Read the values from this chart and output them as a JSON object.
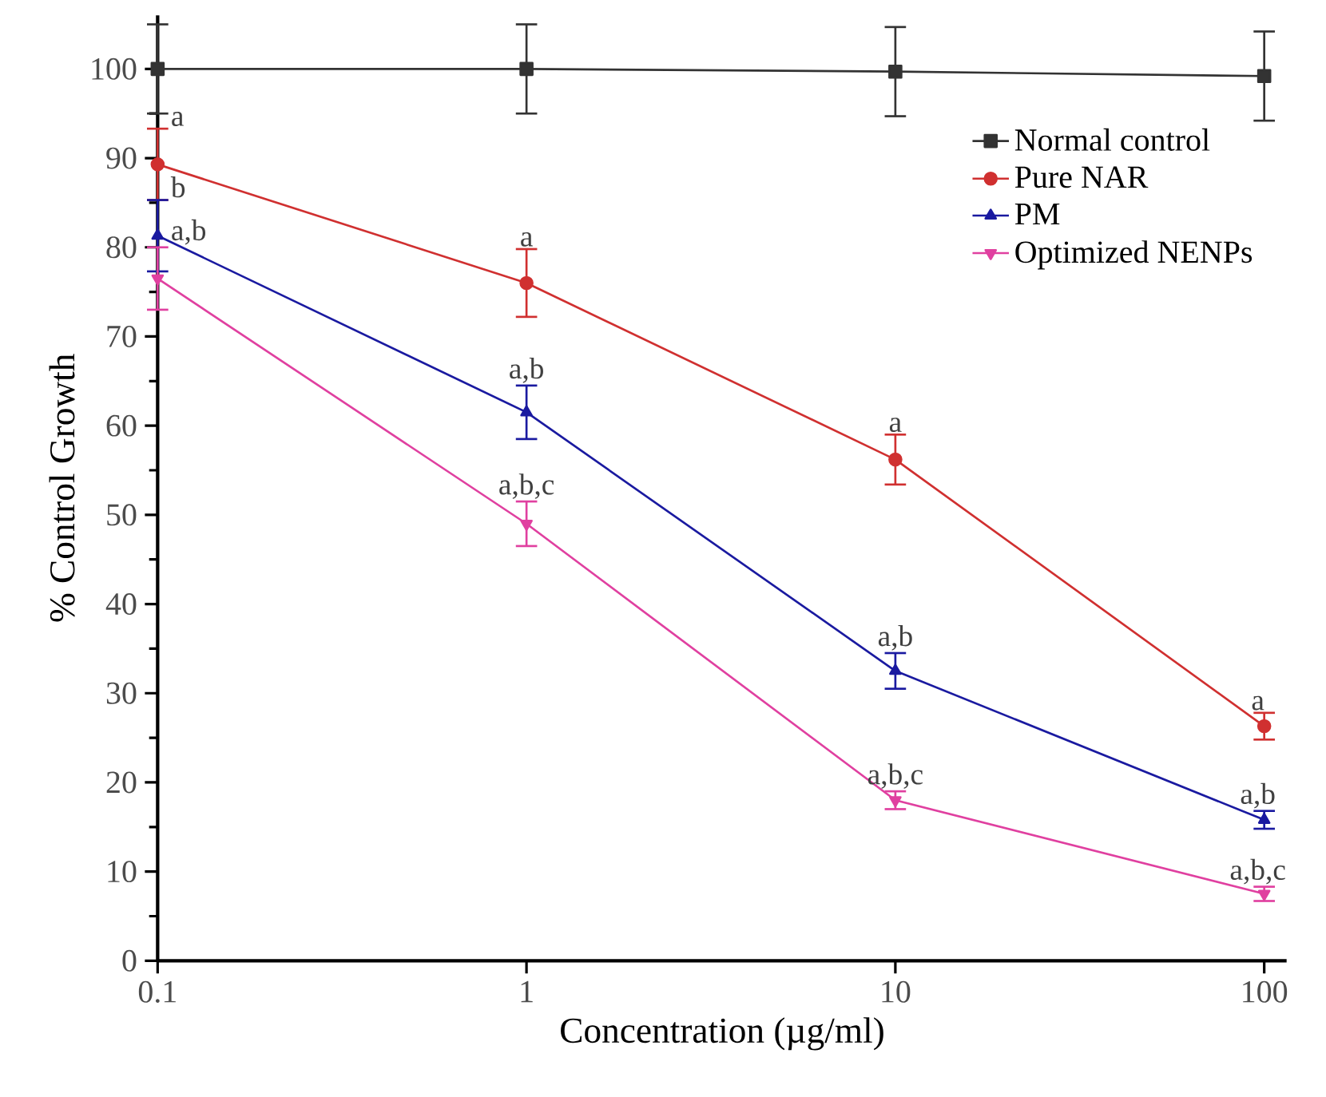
{
  "chart_data": {
    "type": "line",
    "xlabel": "Concentration (µg/ml)",
    "ylabel": "% Control Growth",
    "log": "x",
    "x": [
      0.1,
      1,
      10,
      100
    ],
    "xlim": [
      0.1,
      115
    ],
    "xticks": [
      0.1,
      1,
      10,
      100
    ],
    "ylim": [
      0,
      106
    ],
    "yticks": [
      0,
      10,
      20,
      30,
      40,
      50,
      60,
      70,
      80,
      90,
      100
    ],
    "legend": "top right",
    "line_style": "solid",
    "series": [
      {
        "name": "Normal control",
        "color": "#333333",
        "marker": "square",
        "values": [
          100,
          100,
          99.7,
          99.2
        ],
        "errors": [
          5,
          5,
          5,
          5
        ]
      },
      {
        "name": "Pure NAR",
        "color": "#d03030",
        "marker": "circle",
        "values": [
          89.3,
          76,
          56.2,
          26.3
        ],
        "errors": [
          4,
          3.8,
          2.8,
          1.5
        ]
      },
      {
        "name": "PM",
        "color": "#1a1aa0",
        "marker": "triangle",
        "values": [
          81.3,
          61.5,
          32.5,
          15.8
        ],
        "errors": [
          4,
          3,
          2,
          1
        ]
      },
      {
        "name": "Optimized NENPs",
        "color": "#e040a0",
        "marker": "triangle-down",
        "values": [
          76.5,
          49,
          18,
          7.5
        ],
        "errors": [
          3.5,
          2.5,
          1,
          0.8
        ]
      }
    ],
    "annotations": [
      {
        "text": "a",
        "x": 0.1,
        "y": 89.3
      },
      {
        "text": "b",
        "x": 0.1,
        "y": 81.3
      },
      {
        "text": "a,b",
        "x": 0.1,
        "y": 76.5
      },
      {
        "text": "a",
        "x": 1,
        "y": 76
      },
      {
        "text": "a,b",
        "x": 1,
        "y": 61.5
      },
      {
        "text": "a,b,c",
        "x": 1,
        "y": 49
      },
      {
        "text": "a",
        "x": 10,
        "y": 56.2
      },
      {
        "text": "a,b",
        "x": 10,
        "y": 32.5
      },
      {
        "text": "a,b,c",
        "x": 10,
        "y": 18
      },
      {
        "text": "a",
        "x": 100,
        "y": 26.3
      },
      {
        "text": "a,b",
        "x": 100,
        "y": 15.8
      },
      {
        "text": "a,b,c",
        "x": 100,
        "y": 7.5
      }
    ]
  }
}
